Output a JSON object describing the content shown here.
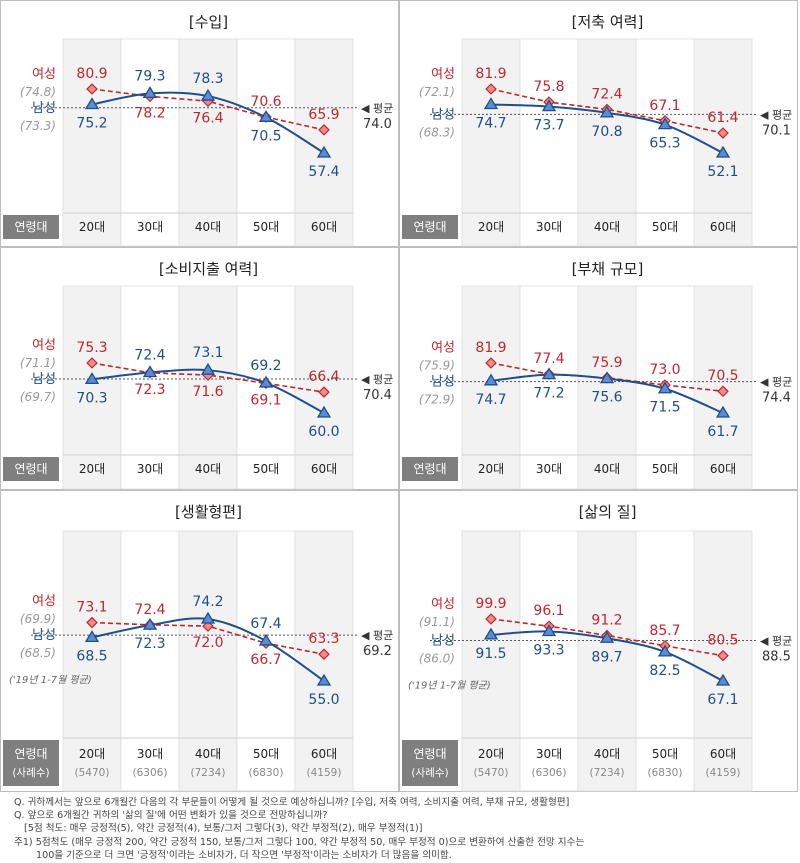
{
  "shared": {
    "age_header_label": "연령대",
    "sample_header_label": "(사례수)",
    "categories": [
      "20대",
      "30대",
      "40대",
      "50대",
      "60대"
    ],
    "sample_sizes": [
      "(5470)",
      "(6306)",
      "(7234)",
      "(6830)",
      "(4159)"
    ],
    "female_label": "여성",
    "male_label": "남성",
    "avg_label": "◀ 평균",
    "baseline_note": "('19년 1-7월 평균)",
    "colors": {
      "female": "#c0272d",
      "male": "#1f4e8c",
      "male_fill": "#5b8bd0",
      "avg_line": "#555555",
      "stripe": "#f2f2f2",
      "header_box": "#7f7f7f"
    }
  },
  "chart_data": [
    {
      "type": "line",
      "title": "[수입]",
      "categories": [
        "20대",
        "30대",
        "40대",
        "50대",
        "60대"
      ],
      "series": [
        {
          "name": "여성",
          "values": [
            80.9,
            78.2,
            76.4,
            70.6,
            65.9
          ],
          "baseline": "(74.8)"
        },
        {
          "name": "남성",
          "values": [
            75.2,
            79.3,
            78.3,
            70.5,
            57.4
          ],
          "baseline": "(73.3)"
        }
      ],
      "average": 74.0,
      "average_text": "74.0",
      "show_samples": false
    },
    {
      "type": "line",
      "title": "[저축 여력]",
      "categories": [
        "20대",
        "30대",
        "40대",
        "50대",
        "60대"
      ],
      "series": [
        {
          "name": "여성",
          "values": [
            81.9,
            75.8,
            72.4,
            67.1,
            61.4
          ],
          "baseline": "(72.1)"
        },
        {
          "name": "남성",
          "values": [
            74.7,
            73.7,
            70.8,
            65.3,
            52.1
          ],
          "baseline": "(68.3)"
        }
      ],
      "average": 70.1,
      "average_text": "70.1",
      "show_samples": false
    },
    {
      "type": "line",
      "title": "[소비지출 여력]",
      "categories": [
        "20대",
        "30대",
        "40대",
        "50대",
        "60대"
      ],
      "series": [
        {
          "name": "여성",
          "values": [
            75.3,
            72.3,
            71.6,
            69.1,
            66.4
          ],
          "baseline": "(71.1)"
        },
        {
          "name": "남성",
          "values": [
            70.3,
            72.4,
            73.1,
            69.2,
            60.0
          ],
          "baseline": "(69.7)"
        }
      ],
      "average": 70.4,
      "average_text": "70.4",
      "show_samples": false
    },
    {
      "type": "line",
      "title": "[부채 규모]",
      "categories": [
        "20대",
        "30대",
        "40대",
        "50대",
        "60대"
      ],
      "series": [
        {
          "name": "여성",
          "values": [
            81.9,
            77.4,
            75.9,
            73.0,
            70.5
          ],
          "baseline": "(75.9)"
        },
        {
          "name": "남성",
          "values": [
            74.7,
            77.2,
            75.6,
            71.5,
            61.7
          ],
          "baseline": "(72.9)"
        }
      ],
      "average": 74.4,
      "average_text": "74.4",
      "show_samples": false
    },
    {
      "type": "line",
      "title": "[생활형편]",
      "categories": [
        "20대",
        "30대",
        "40대",
        "50대",
        "60대"
      ],
      "series": [
        {
          "name": "여성",
          "values": [
            73.1,
            72.4,
            72.0,
            66.7,
            63.3
          ],
          "baseline": "(69.9)"
        },
        {
          "name": "남성",
          "values": [
            68.5,
            72.3,
            74.2,
            67.4,
            55.0
          ],
          "baseline": "(68.5)"
        }
      ],
      "average": 69.2,
      "average_text": "69.2",
      "show_samples": true
    },
    {
      "type": "line",
      "title": "[삶의 질]",
      "categories": [
        "20대",
        "30대",
        "40대",
        "50대",
        "60대"
      ],
      "series": [
        {
          "name": "여성",
          "values": [
            99.9,
            96.1,
            91.2,
            85.7,
            80.5
          ],
          "baseline": "(91.1)"
        },
        {
          "name": "남성",
          "values": [
            91.5,
            93.3,
            89.7,
            82.5,
            67.1
          ],
          "baseline": "(86.0)"
        }
      ],
      "average": 88.5,
      "average_text": "88.5",
      "show_samples": true
    }
  ],
  "label_positions": [
    {
      "female": [
        "above",
        "below",
        "below",
        "above",
        "above"
      ],
      "male": [
        "below",
        "above",
        "above",
        "below",
        "below"
      ]
    },
    {
      "female": [
        "above",
        "above",
        "above",
        "above",
        "above"
      ],
      "male": [
        "below",
        "below",
        "below",
        "below",
        "below"
      ]
    },
    {
      "female": [
        "above",
        "below",
        "below",
        "below",
        "above"
      ],
      "male": [
        "below",
        "above",
        "above",
        "above",
        "below"
      ]
    },
    {
      "female": [
        "above",
        "above",
        "above",
        "above",
        "above"
      ],
      "male": [
        "below",
        "below",
        "below",
        "below",
        "below"
      ]
    },
    {
      "female": [
        "above",
        "above",
        "below",
        "below",
        "above"
      ],
      "male": [
        "below",
        "below",
        "above",
        "above",
        "below"
      ]
    },
    {
      "female": [
        "above",
        "above",
        "above",
        "above",
        "above"
      ],
      "male": [
        "below",
        "below",
        "below",
        "below",
        "below"
      ]
    }
  ],
  "footnotes": [
    "Q. 귀하께서는 앞으로 6개월간 다음의 각 부문들이 어떻게 될 것으로 예상하십니까? [수입, 저축 여력, 소비지출 여력, 부채 규모, 생활형편]",
    "Q. 앞으로 6개월간 귀하의 '삶의 질'에 어떤 변화가 있을 것으로 전망하십니까?",
    "[5점 척도: 매우 긍정적(5), 약간 긍정적(4), 보통/그저 그렇다(3), 약간 부정적(2), 매우 부정적(1)]",
    "주1) 5점척도 (매우 긍정적 200, 약간 긍정적 150, 보통/그저 그렇다 100, 약간 부정적 50, 매우 부정적 0)으로 변환하여 산출한 전망 지수는",
    "100을 기준으로 더 크면 '긍정적'이라는 소비자가, 더 작으면 '부정적'이라는 소비자가 더 많음을 의미함."
  ]
}
